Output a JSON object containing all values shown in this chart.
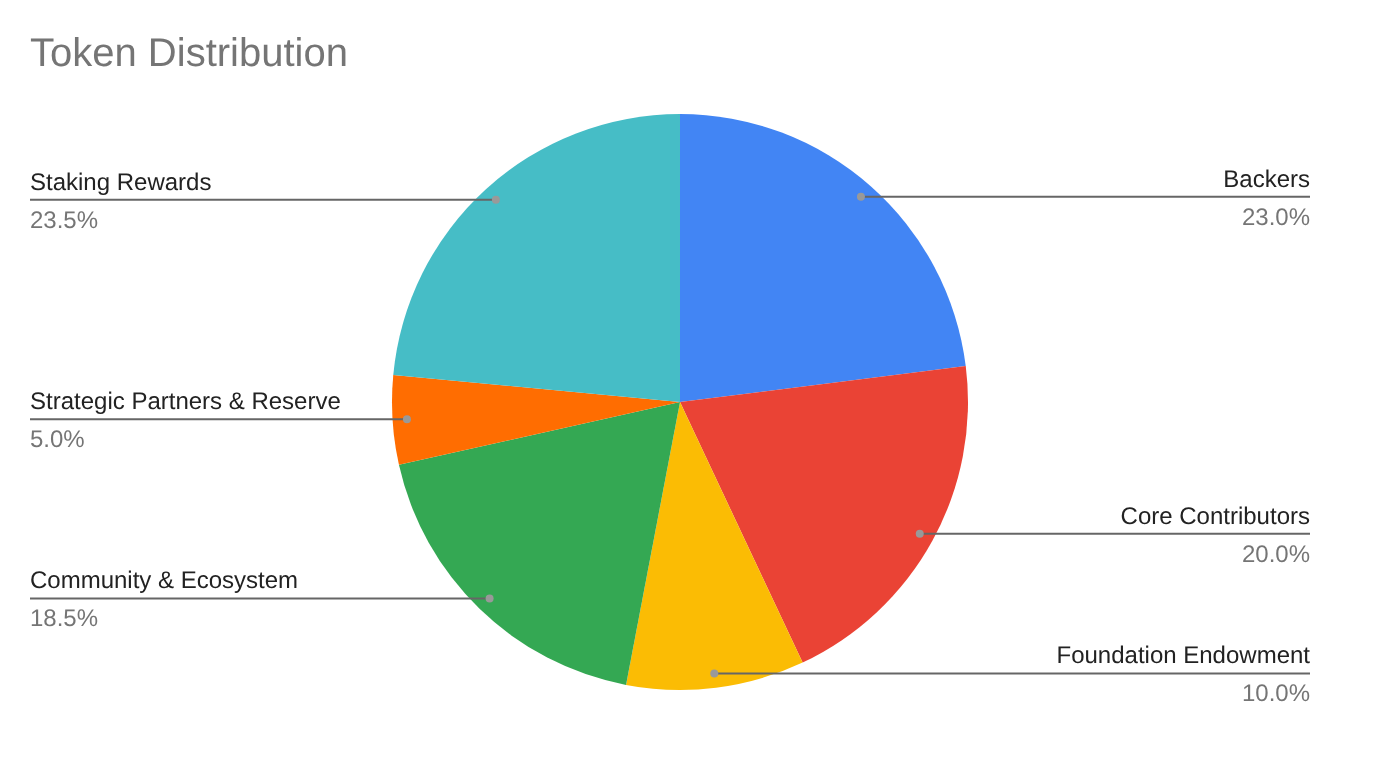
{
  "chart_data": {
    "type": "pie",
    "title": "Token Distribution",
    "categories": [
      "Backers",
      "Core Contributors",
      "Foundation Endowment",
      "Community & Ecosystem",
      "Strategic Partners & Reserve",
      "Staking Rewards"
    ],
    "values": [
      23.0,
      20.0,
      10.0,
      18.5,
      5.0,
      23.5
    ],
    "colors": [
      "#4285f4",
      "#ea4335",
      "#fbbc04",
      "#34a853",
      "#ff6d01",
      "#46bdc6"
    ],
    "value_labels": [
      "23.0%",
      "20.0%",
      "10.0%",
      "18.5%",
      "5.0%",
      "23.5%"
    ],
    "legend": false
  }
}
